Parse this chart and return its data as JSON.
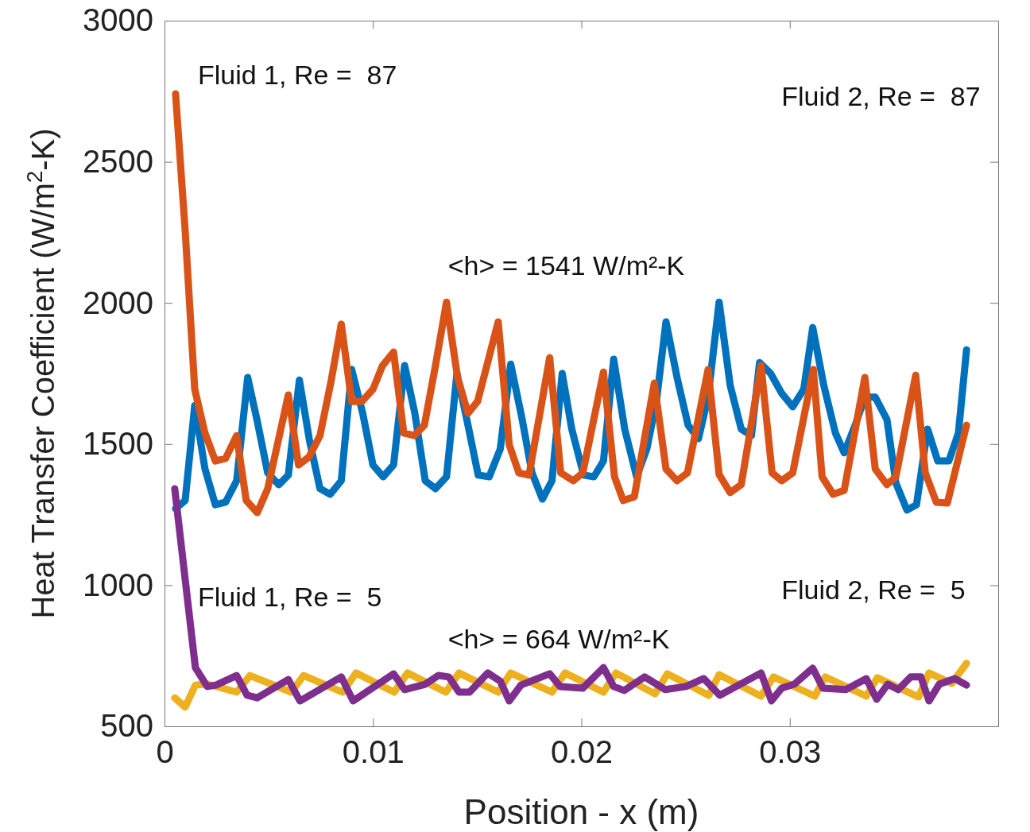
{
  "chart_data": {
    "type": "line",
    "xlabel": "Position - x (m)",
    "ylabel": "Heat Transfer Coefficient (W/m$^{2}$-K)",
    "xlim": [
      0,
      0.04
    ],
    "xticks": [
      0,
      0.01,
      0.02,
      0.03
    ],
    "ylim": [
      500,
      3000
    ],
    "yticks": [
      500,
      1000,
      1500,
      2000,
      2500,
      3000
    ],
    "grid": false,
    "marker": "none",
    "line_style": "solid",
    "series": [
      {
        "color": "#0072bd",
        "x": [
          0.00053,
          0.00099,
          0.00145,
          0.00194,
          0.00244,
          0.00293,
          0.00346,
          0.00399,
          0.00445,
          0.00495,
          0.00548,
          0.00594,
          0.00647,
          0.00696,
          0.00746,
          0.00795,
          0.00848,
          0.00898,
          0.00951,
          0.01,
          0.01049,
          0.01099,
          0.01152,
          0.01201,
          0.01251,
          0.013,
          0.01353,
          0.01403,
          0.01452,
          0.01505,
          0.01558,
          0.01611,
          0.01661,
          0.01714,
          0.01763,
          0.01813,
          0.01859,
          0.01908,
          0.01954,
          0.02011,
          0.0206,
          0.02106,
          0.02155,
          0.02208,
          0.02265,
          0.02314,
          0.0236,
          0.02406,
          0.02459,
          0.02512,
          0.02562,
          0.02608,
          0.02661,
          0.02714,
          0.02767,
          0.02816,
          0.02855,
          0.02908,
          0.02961,
          0.03014,
          0.03067,
          0.0311,
          0.03163,
          0.03219,
          0.03261,
          0.03314,
          0.0336,
          0.0341,
          0.03466,
          0.03509,
          0.03562,
          0.03608,
          0.03661,
          0.0371,
          0.03763,
          0.03809,
          0.03848
        ],
        "values": [
          1271,
          1300,
          1637,
          1412,
          1285,
          1294,
          1370,
          1736,
          1581,
          1398,
          1356,
          1390,
          1727,
          1511,
          1342,
          1322,
          1370,
          1764,
          1609,
          1426,
          1384,
          1426,
          1778,
          1609,
          1370,
          1342,
          1384,
          1750,
          1581,
          1390,
          1384,
          1483,
          1783,
          1595,
          1398,
          1305,
          1370,
          1750,
          1553,
          1390,
          1384,
          1440,
          1801,
          1553,
          1384,
          1483,
          1651,
          1933,
          1736,
          1567,
          1519,
          1666,
          2003,
          1708,
          1553,
          1530,
          1789,
          1750,
          1680,
          1632,
          1694,
          1913,
          1708,
          1539,
          1469,
          1567,
          1666,
          1666,
          1587,
          1362,
          1266,
          1285,
          1553,
          1440,
          1440,
          1539,
          1834
        ]
      },
      {
        "color": "#d95319",
        "x": [
          0.00053,
          0.00099,
          0.00145,
          0.00194,
          0.00244,
          0.00293,
          0.00346,
          0.00392,
          0.00445,
          0.00495,
          0.00594,
          0.00643,
          0.00693,
          0.00746,
          0.00799,
          0.00848,
          0.00898,
          0.00947,
          0.01,
          0.01046,
          0.01099,
          0.01148,
          0.01198,
          0.01247,
          0.013,
          0.01353,
          0.01406,
          0.01456,
          0.01502,
          0.01601,
          0.01654,
          0.017,
          0.01749,
          0.01848,
          0.01901,
          0.01961,
          0.02007,
          0.02106,
          0.02159,
          0.02201,
          0.02254,
          0.0235,
          0.02406,
          0.02459,
          0.02509,
          0.02608,
          0.02661,
          0.02714,
          0.02767,
          0.02862,
          0.02915,
          0.02961,
          0.03014,
          0.03113,
          0.03155,
          0.03208,
          0.03261,
          0.0336,
          0.0341,
          0.03466,
          0.03509,
          0.03604,
          0.0365,
          0.03703,
          0.03756,
          0.03848
        ],
        "values": [
          2741,
          2257,
          1694,
          1539,
          1440,
          1449,
          1530,
          1300,
          1257,
          1342,
          1674,
          1426,
          1454,
          1530,
          1722,
          1925,
          1651,
          1651,
          1694,
          1778,
          1826,
          1539,
          1530,
          1567,
          1778,
          2003,
          1736,
          1609,
          1651,
          1933,
          1497,
          1398,
          1390,
          1806,
          1398,
          1370,
          1398,
          1755,
          1384,
          1300,
          1313,
          1716,
          1412,
          1370,
          1398,
          1764,
          1392,
          1328,
          1356,
          1778,
          1398,
          1370,
          1398,
          1764,
          1384,
          1322,
          1336,
          1736,
          1412,
          1356,
          1384,
          1744,
          1398,
          1294,
          1291,
          1567
        ]
      },
      {
        "color": "#edb120",
        "x": [
          0.00049,
          0.00099,
          0.00148,
          0.00205,
          0.00346,
          0.0041,
          0.00608,
          0.00668,
          0.00855,
          0.00919,
          0.01102,
          0.01166,
          0.0135,
          0.01413,
          0.01601,
          0.01661,
          0.01859,
          0.01922,
          0.02106,
          0.02166,
          0.02353,
          0.02413,
          0.02611,
          0.02661,
          0.02862,
          0.02922,
          0.0312,
          0.0317,
          0.03367,
          0.0342,
          0.03618,
          0.03668,
          0.03777,
          0.03848
        ],
        "values": [
          601,
          568,
          646,
          650,
          621,
          680,
          621,
          680,
          621,
          689,
          621,
          689,
          621,
          689,
          621,
          689,
          621,
          689,
          621,
          689,
          615,
          686,
          610,
          683,
          607,
          675,
          607,
          675,
          607,
          672,
          604,
          689,
          652,
          723
        ]
      },
      {
        "color": "#7e2f8e",
        "x": [
          0.00049,
          0.00148,
          0.00205,
          0.00247,
          0.00346,
          0.00396,
          0.00445,
          0.00594,
          0.0065,
          0.00848,
          0.00905,
          0.01099,
          0.01152,
          0.01251,
          0.01314,
          0.01364,
          0.01413,
          0.01463,
          0.01551,
          0.01611,
          0.01654,
          0.0171,
          0.01848,
          0.01898,
          0.02007,
          0.02106,
          0.02155,
          0.02205,
          0.02304,
          0.02403,
          0.02502,
          0.02587,
          0.02664,
          0.02862,
          0.02912,
          0.02961,
          0.03021,
          0.0311,
          0.03159,
          0.03269,
          0.03367,
          0.03417,
          0.0347,
          0.0352,
          0.0358,
          0.03629,
          0.03668,
          0.03717,
          0.03792,
          0.03848
        ],
        "values": [
          1342,
          708,
          641,
          646,
          680,
          610,
          601,
          666,
          590,
          675,
          590,
          686,
          630,
          649,
          680,
          675,
          621,
          621,
          689,
          660,
          590,
          646,
          686,
          641,
          635,
          708,
          641,
          627,
          675,
          630,
          641,
          669,
          610,
          689,
          590,
          635,
          649,
          706,
          635,
          630,
          669,
          596,
          649,
          630,
          675,
          675,
          590,
          649,
          669,
          646
        ]
      }
    ],
    "annotations": [
      "Fluid 1, Re =  87",
      "Fluid 2, Re =  87",
      "<h> = 1541 W/m²-K",
      "Fluid 1, Re =  5",
      "Fluid 2, Re =  5",
      "<h> = 664 W/m²-K"
    ]
  }
}
